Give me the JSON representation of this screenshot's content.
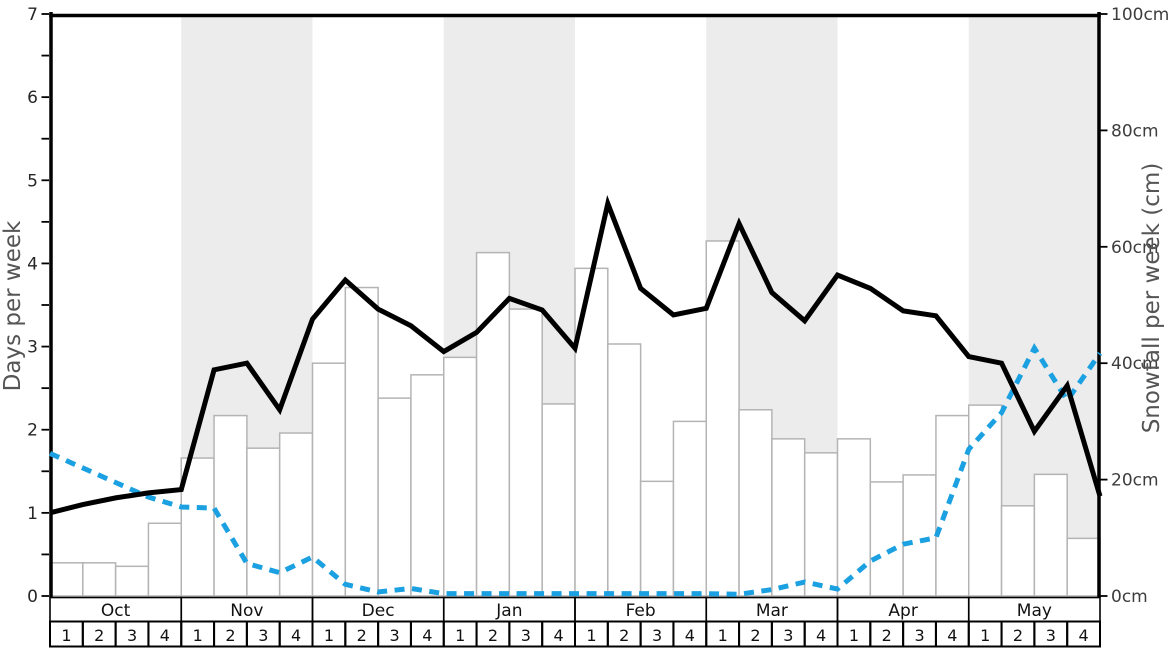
{
  "chart_data": {
    "type": "composite",
    "description": "Seasonal snowfall chart: white weekly bars (right axis, cm), solid black weekly line (left axis, days), dashed blue weekly line (right axis, cm). Alternate months shaded grey.",
    "left_axis": {
      "label": "Days per week",
      "min": 0,
      "max": 7,
      "major_ticks": [
        0,
        1,
        2,
        3,
        4,
        5,
        6,
        7
      ],
      "minor_tick_step": 0.5
    },
    "right_axis": {
      "label": "Snowfall per week (cm)",
      "min": 0,
      "max": 100,
      "ticks": [
        {
          "value": 0,
          "label": "0cm"
        },
        {
          "value": 20,
          "label": "20cm"
        },
        {
          "value": 40,
          "label": "40cm"
        },
        {
          "value": 60,
          "label": "60cm"
        },
        {
          "value": 80,
          "label": "80cm"
        },
        {
          "value": 100,
          "label": "100cm"
        }
      ]
    },
    "x_axis": {
      "months": [
        "Oct",
        "Nov",
        "Dec",
        "Jan",
        "Feb",
        "Mar",
        "Apr",
        "May"
      ],
      "shaded_months": [
        "Nov",
        "Jan",
        "Mar",
        "May"
      ],
      "week_labels": [
        "1",
        "2",
        "3",
        "4"
      ],
      "weeks_total": 32
    },
    "bars": {
      "id": "snowfall-bars",
      "axis": "right",
      "unit": "cm",
      "values": [
        5.7,
        5.7,
        5.1,
        12.5,
        23.7,
        31,
        25.4,
        28,
        40,
        53,
        34,
        38,
        41,
        59,
        49.3,
        33,
        56.3,
        43.3,
        19.7,
        30,
        61,
        32,
        27,
        24.6,
        27,
        19.6,
        20.8,
        31,
        32.8,
        15.5,
        20.9,
        9.9
      ]
    },
    "series": [
      {
        "id": "black-solid-line",
        "axis": "left",
        "unit": "days",
        "style": "solid",
        "color": "#000000",
        "note": "33 points, one per week boundary from left edge (Oct w1) to right edge (end of May w4)",
        "values": [
          1.0,
          1.1,
          1.18,
          1.24,
          1.28,
          2.72,
          2.8,
          2.24,
          3.33,
          3.8,
          3.45,
          3.25,
          2.94,
          3.17,
          3.58,
          3.44,
          2.98,
          4.72,
          3.7,
          3.38,
          3.46,
          4.48,
          3.65,
          3.31,
          3.86,
          3.7,
          3.43,
          3.37,
          2.88,
          2.8,
          1.98,
          2.53,
          1.2
        ]
      },
      {
        "id": "blue-dashed-line",
        "axis": "right",
        "unit": "cm",
        "style": "dashed",
        "color": "#1ba0e1",
        "values": [
          24.5,
          22,
          19.5,
          17,
          15.3,
          15.1,
          5.6,
          4,
          6.7,
          2,
          0.7,
          1.3,
          0.4,
          0.4,
          0.4,
          0.4,
          0.4,
          0.4,
          0.4,
          0.4,
          0.4,
          0.3,
          1.1,
          2.4,
          1.2,
          6,
          8.9,
          10,
          25.2,
          31.5,
          42.6,
          33.6,
          41.7
        ]
      }
    ],
    "colors": {
      "band": "#ececec",
      "bar_fill": "#ffffff",
      "bar_border": "#b4b4b4",
      "spine": "#000000",
      "bottom_rule": "#a0a0a0",
      "axis_title": "#555555",
      "left_tick_label": "#262626",
      "right_tick_label": "#3d3d3d",
      "calendar_text": "#111111"
    }
  }
}
